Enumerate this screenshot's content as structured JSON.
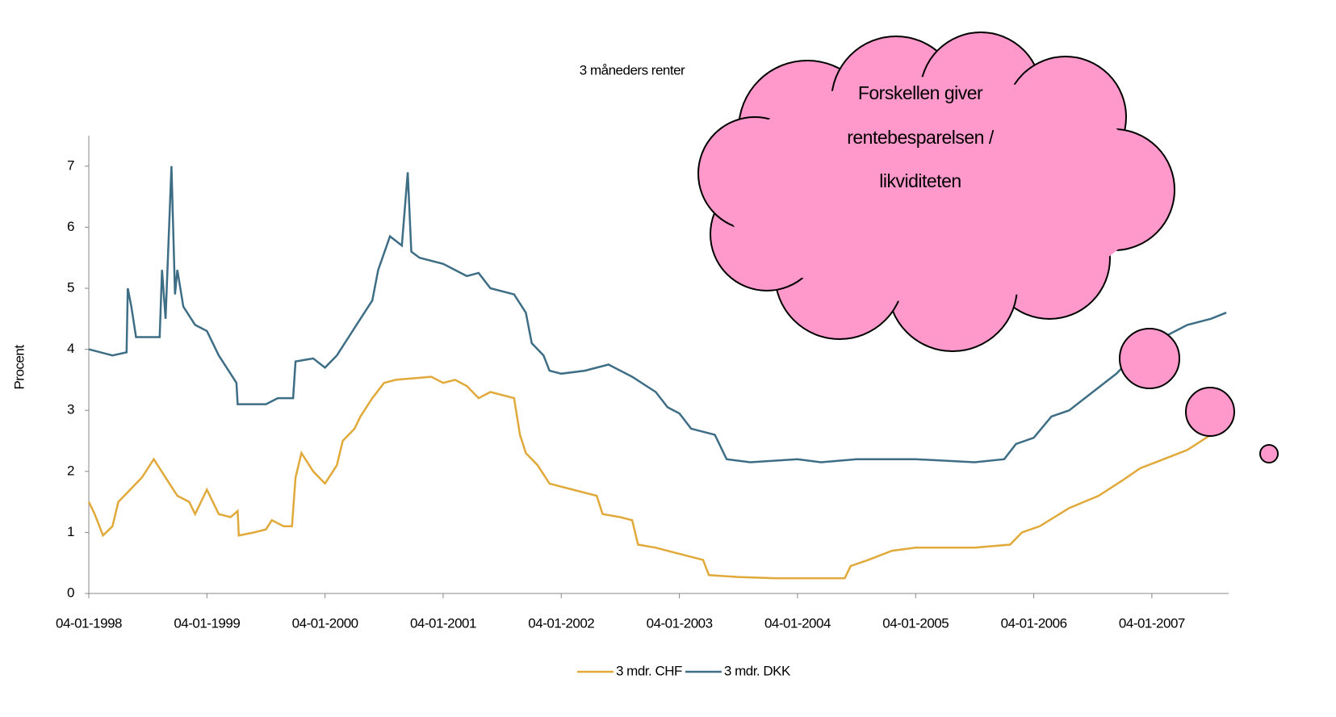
{
  "chart_data": {
    "type": "line",
    "title": "3 måneders renter",
    "ylabel": "Procent",
    "annotation": [
      "Forskellen  giver",
      "rentebesparelsen  /",
      "likviditeten"
    ],
    "xlim": [
      1998,
      2007.65
    ],
    "ylim": [
      0,
      7.5
    ],
    "xticks": [
      {
        "value": 1998,
        "label": "04-01-1998"
      },
      {
        "value": 1999,
        "label": "04-01-1999"
      },
      {
        "value": 2000,
        "label": "04-01-2000"
      },
      {
        "value": 2001,
        "label": "04-01-2001"
      },
      {
        "value": 2002,
        "label": "04-01-2002"
      },
      {
        "value": 2003,
        "label": "04-01-2003"
      },
      {
        "value": 2004,
        "label": "04-01-2004"
      },
      {
        "value": 2005,
        "label": "04-01-2005"
      },
      {
        "value": 2006,
        "label": "04-01-2006"
      },
      {
        "value": 2007,
        "label": "04-01-2007"
      }
    ],
    "yticks": [
      0,
      1,
      2,
      3,
      4,
      5,
      6,
      7
    ],
    "grid": false,
    "legend": "bottom",
    "series": [
      {
        "name": "3 mdr. CHF",
        "color": "#e0a93a",
        "x": [
          1998.0,
          1998.05,
          1998.12,
          1998.2,
          1998.25,
          1998.35,
          1998.45,
          1998.55,
          1998.65,
          1998.75,
          1998.85,
          1998.9,
          1999.0,
          1999.1,
          1999.2,
          1999.26,
          1999.27,
          1999.4,
          1999.5,
          1999.55,
          1999.65,
          1999.72,
          1999.75,
          1999.8,
          1999.9,
          2000.0,
          2000.1,
          2000.15,
          2000.25,
          2000.3,
          2000.4,
          2000.5,
          2000.6,
          2000.9,
          2001.0,
          2001.1,
          2001.2,
          2001.3,
          2001.4,
          2001.6,
          2001.65,
          2001.7,
          2001.8,
          2001.9,
          2002.1,
          2002.3,
          2002.35,
          2002.5,
          2002.6,
          2002.65,
          2002.8,
          2003.0,
          2003.2,
          2003.25,
          2003.5,
          2003.8,
          2004.2,
          2004.4,
          2004.45,
          2004.6,
          2004.8,
          2005.0,
          2005.5,
          2005.8,
          2005.9,
          2006.05,
          2006.3,
          2006.55,
          2006.75,
          2006.9,
          2007.1,
          2007.3,
          2007.5
        ],
        "values": [
          1.5,
          1.3,
          0.95,
          1.1,
          1.5,
          1.7,
          1.9,
          2.2,
          1.9,
          1.6,
          1.5,
          1.3,
          1.7,
          1.3,
          1.25,
          1.35,
          0.95,
          1.0,
          1.05,
          1.2,
          1.1,
          1.1,
          1.9,
          2.3,
          2.0,
          1.8,
          2.1,
          2.5,
          2.7,
          2.9,
          3.2,
          3.45,
          3.5,
          3.55,
          3.45,
          3.5,
          3.4,
          3.2,
          3.3,
          3.2,
          2.6,
          2.3,
          2.1,
          1.8,
          1.7,
          1.6,
          1.3,
          1.25,
          1.2,
          0.8,
          0.75,
          0.65,
          0.55,
          0.3,
          0.27,
          0.25,
          0.25,
          0.25,
          0.45,
          0.55,
          0.7,
          0.75,
          0.75,
          0.8,
          1.0,
          1.1,
          1.4,
          1.6,
          1.85,
          2.05,
          2.2,
          2.35,
          2.6
        ]
      },
      {
        "name": "3 mdr. DKK",
        "color": "#3e6e85",
        "x": [
          1998.0,
          1998.2,
          1998.32,
          1998.33,
          1998.36,
          1998.4,
          1998.6,
          1998.62,
          1998.65,
          1998.7,
          1998.73,
          1998.75,
          1998.8,
          1998.9,
          1999.0,
          1999.1,
          1999.2,
          1999.25,
          1999.26,
          1999.5,
          1999.6,
          1999.73,
          1999.75,
          1999.9,
          2000.0,
          2000.1,
          2000.2,
          2000.3,
          2000.4,
          2000.45,
          2000.55,
          2000.65,
          2000.7,
          2000.73,
          2000.8,
          2001.0,
          2001.2,
          2001.3,
          2001.4,
          2001.6,
          2001.7,
          2001.75,
          2001.85,
          2001.9,
          2002.0,
          2002.2,
          2002.4,
          2002.6,
          2002.8,
          2002.9,
          2003.0,
          2003.1,
          2003.3,
          2003.4,
          2003.6,
          2004.0,
          2004.2,
          2004.5,
          2005.0,
          2005.5,
          2005.75,
          2005.85,
          2006.0,
          2006.15,
          2006.3,
          2006.5,
          2006.7,
          2006.9,
          2007.1,
          2007.3,
          2007.5,
          2007.63
        ],
        "values": [
          4.0,
          3.9,
          3.95,
          5.0,
          4.7,
          4.2,
          4.2,
          5.3,
          4.5,
          7.0,
          4.9,
          5.3,
          4.7,
          4.4,
          4.3,
          3.9,
          3.6,
          3.45,
          3.1,
          3.1,
          3.2,
          3.2,
          3.8,
          3.85,
          3.7,
          3.9,
          4.2,
          4.5,
          4.8,
          5.3,
          5.85,
          5.7,
          6.9,
          5.6,
          5.5,
          5.4,
          5.2,
          5.25,
          5.0,
          4.9,
          4.6,
          4.1,
          3.9,
          3.65,
          3.6,
          3.65,
          3.75,
          3.55,
          3.3,
          3.05,
          2.95,
          2.7,
          2.6,
          2.2,
          2.15,
          2.2,
          2.15,
          2.2,
          2.2,
          2.15,
          2.2,
          2.45,
          2.55,
          2.9,
          3.0,
          3.3,
          3.6,
          4.0,
          4.2,
          4.4,
          4.5,
          4.6
        ]
      }
    ]
  }
}
